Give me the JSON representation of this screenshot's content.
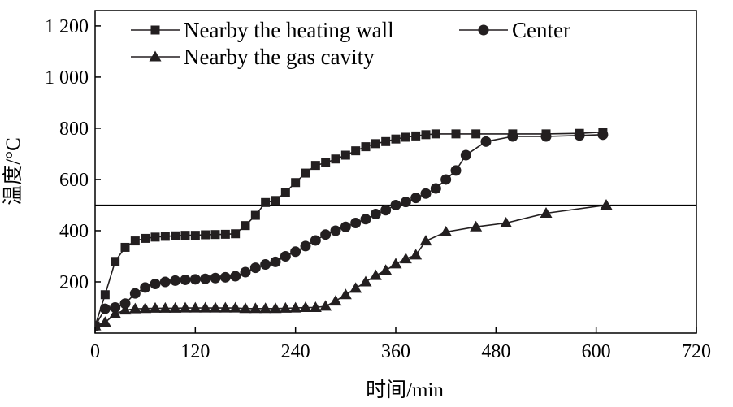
{
  "chart_data": {
    "type": "line",
    "xlabel": "时间/min",
    "ylabel": "温度/°C",
    "xlim": [
      0,
      720
    ],
    "ylim": [
      0,
      1260
    ],
    "x_ticks": [
      {
        "value": 0,
        "label": "0"
      },
      {
        "value": 120,
        "label": "120"
      },
      {
        "value": 240,
        "label": "240"
      },
      {
        "value": 360,
        "label": "360"
      },
      {
        "value": 480,
        "label": "480"
      },
      {
        "value": 600,
        "label": "600"
      },
      {
        "value": 720,
        "label": "720"
      }
    ],
    "y_ticks": [
      {
        "value": 200,
        "label": "200"
      },
      {
        "value": 400,
        "label": "400"
      },
      {
        "value": 600,
        "label": "600"
      },
      {
        "value": 800,
        "label": "800"
      },
      {
        "value": 1000,
        "label": "1 000"
      },
      {
        "value": 1200,
        "label": "1 200"
      }
    ],
    "reference_line": {
      "y": 500
    },
    "grid": false,
    "legend_position": "top-left",
    "series": [
      {
        "name": "Nearby the heating wall",
        "marker": "square",
        "color": "#231f20",
        "points": [
          [
            0,
            28
          ],
          [
            12,
            150
          ],
          [
            24,
            280
          ],
          [
            36,
            335
          ],
          [
            48,
            360
          ],
          [
            60,
            370
          ],
          [
            72,
            375
          ],
          [
            84,
            378
          ],
          [
            96,
            380
          ],
          [
            108,
            382
          ],
          [
            120,
            382
          ],
          [
            132,
            384
          ],
          [
            144,
            385
          ],
          [
            156,
            386
          ],
          [
            168,
            388
          ],
          [
            180,
            420
          ],
          [
            192,
            460
          ],
          [
            204,
            510
          ],
          [
            216,
            518
          ],
          [
            228,
            550
          ],
          [
            240,
            588
          ],
          [
            252,
            625
          ],
          [
            264,
            655
          ],
          [
            276,
            665
          ],
          [
            288,
            680
          ],
          [
            300,
            695
          ],
          [
            312,
            712
          ],
          [
            324,
            728
          ],
          [
            336,
            740
          ],
          [
            348,
            748
          ],
          [
            360,
            758
          ],
          [
            372,
            765
          ],
          [
            384,
            770
          ],
          [
            396,
            775
          ],
          [
            408,
            778
          ],
          [
            432,
            778
          ],
          [
            456,
            778
          ],
          [
            500,
            778
          ],
          [
            540,
            778
          ],
          [
            580,
            780
          ],
          [
            608,
            785
          ]
        ]
      },
      {
        "name": "Center",
        "marker": "circle",
        "color": "#231f20",
        "points": [
          [
            0,
            28
          ],
          [
            12,
            95
          ],
          [
            24,
            100
          ],
          [
            36,
            115
          ],
          [
            48,
            155
          ],
          [
            60,
            178
          ],
          [
            72,
            192
          ],
          [
            84,
            200
          ],
          [
            96,
            205
          ],
          [
            108,
            208
          ],
          [
            120,
            210
          ],
          [
            132,
            212
          ],
          [
            144,
            215
          ],
          [
            156,
            218
          ],
          [
            168,
            222
          ],
          [
            180,
            238
          ],
          [
            192,
            255
          ],
          [
            204,
            268
          ],
          [
            216,
            278
          ],
          [
            228,
            300
          ],
          [
            240,
            318
          ],
          [
            252,
            340
          ],
          [
            264,
            362
          ],
          [
            276,
            385
          ],
          [
            288,
            400
          ],
          [
            300,
            415
          ],
          [
            312,
            430
          ],
          [
            324,
            445
          ],
          [
            336,
            465
          ],
          [
            348,
            480
          ],
          [
            360,
            500
          ],
          [
            372,
            512
          ],
          [
            384,
            528
          ],
          [
            396,
            545
          ],
          [
            408,
            565
          ],
          [
            420,
            600
          ],
          [
            432,
            635
          ],
          [
            444,
            695
          ],
          [
            468,
            748
          ],
          [
            500,
            768
          ],
          [
            540,
            768
          ],
          [
            580,
            772
          ],
          [
            608,
            775
          ]
        ]
      },
      {
        "name": "Nearby the gas cavity",
        "marker": "triangle",
        "color": "#231f20",
        "points": [
          [
            0,
            28
          ],
          [
            12,
            42
          ],
          [
            24,
            75
          ],
          [
            36,
            90
          ],
          [
            48,
            95
          ],
          [
            60,
            96
          ],
          [
            72,
            97
          ],
          [
            84,
            97
          ],
          [
            96,
            97
          ],
          [
            108,
            98
          ],
          [
            120,
            98
          ],
          [
            132,
            98
          ],
          [
            144,
            98
          ],
          [
            156,
            98
          ],
          [
            168,
            98
          ],
          [
            180,
            96
          ],
          [
            192,
            96
          ],
          [
            204,
            96
          ],
          [
            216,
            96
          ],
          [
            228,
            97
          ],
          [
            240,
            98
          ],
          [
            252,
            100
          ],
          [
            264,
            100
          ],
          [
            276,
            105
          ],
          [
            288,
            125
          ],
          [
            300,
            150
          ],
          [
            312,
            175
          ],
          [
            324,
            200
          ],
          [
            336,
            225
          ],
          [
            348,
            245
          ],
          [
            360,
            270
          ],
          [
            372,
            290
          ],
          [
            384,
            305
          ],
          [
            396,
            360
          ],
          [
            420,
            395
          ],
          [
            456,
            415
          ],
          [
            492,
            430
          ],
          [
            540,
            468
          ],
          [
            612,
            500
          ]
        ]
      }
    ]
  }
}
